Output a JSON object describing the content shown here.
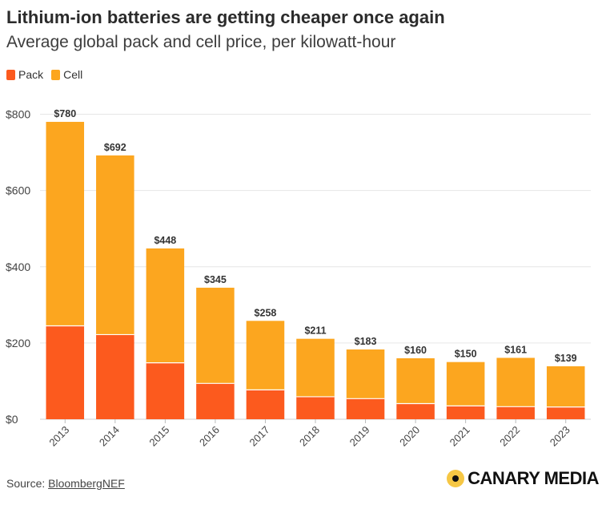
{
  "title": "Lithium-ion batteries are getting cheaper once again",
  "subtitle": "Average global pack and cell price, per kilowatt-hour",
  "legend": {
    "pack_label": "Pack",
    "cell_label": "Cell"
  },
  "colors": {
    "pack": "#fc5a1e",
    "cell": "#fca61f",
    "grid": "#e6e6e6"
  },
  "source": {
    "prefix": "Source: ",
    "link_text": "BloombergNEF"
  },
  "brand": {
    "name": "CANARY MEDIA"
  },
  "chart_data": {
    "type": "bar",
    "stacked": true,
    "categories": [
      "2013",
      "2014",
      "2015",
      "2016",
      "2017",
      "2018",
      "2019",
      "2020",
      "2021",
      "2022",
      "2023"
    ],
    "series": [
      {
        "name": "Pack",
        "values": [
          245,
          222,
          148,
          94,
          77,
          59,
          54,
          41,
          35,
          33,
          32
        ]
      },
      {
        "name": "Cell",
        "values": [
          535,
          470,
          300,
          251,
          181,
          152,
          129,
          119,
          115,
          128,
          107
        ]
      }
    ],
    "totals": [
      780,
      692,
      448,
      345,
      258,
      211,
      183,
      160,
      150,
      161,
      139
    ],
    "total_labels": [
      "$780",
      "$692",
      "$448",
      "$345",
      "$258",
      "$211",
      "$183",
      "$160",
      "$150",
      "$161",
      "$139"
    ],
    "yticks": [
      0,
      200,
      400,
      600,
      800
    ],
    "ytick_labels": [
      "$0",
      "$200",
      "$400",
      "$600",
      "$800"
    ],
    "ylim": [
      0,
      820
    ],
    "grid": true,
    "legend_position": "top-left"
  }
}
